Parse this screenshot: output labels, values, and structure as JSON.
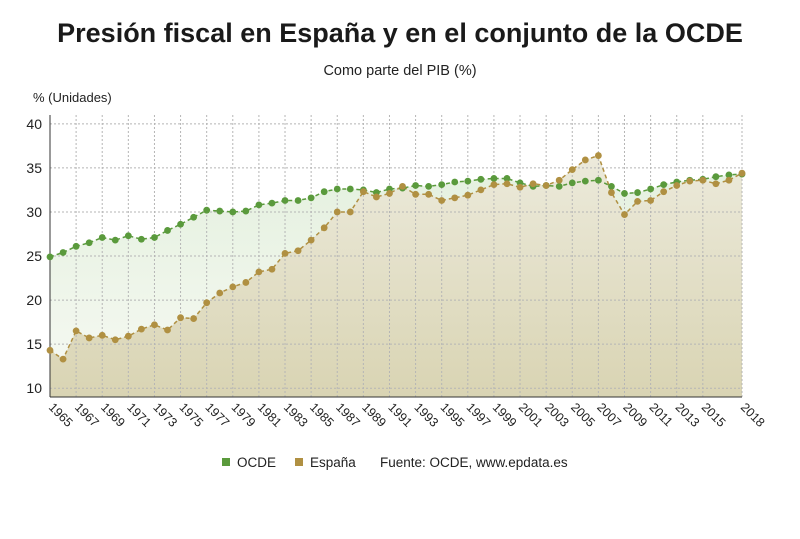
{
  "chart_data": {
    "type": "line",
    "title": "Presión fiscal en España y en el conjunto de la OCDE",
    "subtitle": "Como parte del PIB (%)",
    "ylabel": "% (Unidades)",
    "ylim": [
      9,
      41
    ],
    "yticks": [
      10,
      15,
      20,
      25,
      30,
      35,
      40
    ],
    "xlim": [
      1965,
      2018
    ],
    "xticks": [
      1965,
      1967,
      1969,
      1971,
      1973,
      1975,
      1977,
      1979,
      1981,
      1983,
      1985,
      1987,
      1989,
      1991,
      1993,
      1995,
      1997,
      1999,
      2001,
      2003,
      2005,
      2007,
      2009,
      2011,
      2013,
      2015,
      2018
    ],
    "grid": true,
    "legend_position": "bottom",
    "x": [
      1965,
      1966,
      1967,
      1968,
      1969,
      1970,
      1971,
      1972,
      1973,
      1974,
      1975,
      1976,
      1977,
      1978,
      1979,
      1980,
      1981,
      1982,
      1983,
      1984,
      1985,
      1986,
      1987,
      1988,
      1989,
      1990,
      1991,
      1992,
      1993,
      1994,
      1995,
      1996,
      1997,
      1998,
      1999,
      2000,
      2001,
      2002,
      2003,
      2004,
      2005,
      2006,
      2007,
      2008,
      2009,
      2010,
      2011,
      2012,
      2013,
      2014,
      2015,
      2016,
      2017,
      2018
    ],
    "series": [
      {
        "name": "OCDE",
        "color": "#5a9a3c",
        "values": [
          24.9,
          25.4,
          26.1,
          26.5,
          27.1,
          26.8,
          27.3,
          26.9,
          27.1,
          27.9,
          28.6,
          29.4,
          30.2,
          30.1,
          30.0,
          30.1,
          30.8,
          31.0,
          31.3,
          31.3,
          31.6,
          32.3,
          32.6,
          32.6,
          32.5,
          32.2,
          32.6,
          32.7,
          33.0,
          32.9,
          33.1,
          33.4,
          33.5,
          33.7,
          33.8,
          33.8,
          33.3,
          32.9,
          33.0,
          32.9,
          33.3,
          33.5,
          33.6,
          32.9,
          32.1,
          32.2,
          32.6,
          33.1,
          33.4,
          33.6,
          33.7,
          34.0,
          34.2,
          34.3
        ]
      },
      {
        "name": "España",
        "color": "#b09042",
        "values": [
          14.3,
          13.3,
          16.5,
          15.7,
          16.0,
          15.5,
          15.9,
          16.7,
          17.2,
          16.6,
          18.0,
          17.9,
          19.7,
          20.8,
          21.5,
          22.0,
          23.2,
          23.5,
          25.3,
          25.6,
          26.8,
          28.2,
          30.0,
          30.0,
          32.3,
          31.7,
          32.1,
          32.9,
          32.0,
          32.0,
          31.3,
          31.6,
          31.9,
          32.5,
          33.1,
          33.2,
          32.8,
          33.2,
          33.0,
          33.6,
          34.8,
          35.9,
          36.4,
          32.2,
          29.7,
          31.2,
          31.3,
          32.3,
          33.0,
          33.5,
          33.6,
          33.2,
          33.6,
          34.4
        ]
      }
    ]
  },
  "legend": {
    "source": "Fuente: OCDE, www.epdata.es"
  }
}
